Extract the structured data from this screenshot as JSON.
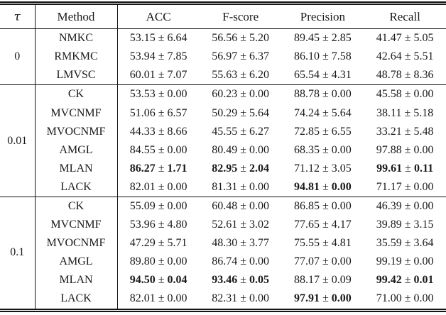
{
  "symbols": {
    "pm": "±"
  },
  "table": {
    "headers": [
      "τ",
      "Method",
      "ACC",
      "F-score",
      "Precision",
      "Recall"
    ],
    "groups": [
      {
        "tau": "0",
        "rows": [
          {
            "method": "NMKC",
            "cells": [
              {
                "m": "53.15",
                "s": "6.64",
                "b": false
              },
              {
                "m": "56.56",
                "s": "5.20",
                "b": false
              },
              {
                "m": "89.45",
                "s": "2.85",
                "b": false
              },
              {
                "m": "41.47",
                "s": "5.05",
                "b": false
              }
            ]
          },
          {
            "method": "RMKMC",
            "cells": [
              {
                "m": "53.94",
                "s": "7.85",
                "b": false
              },
              {
                "m": "56.97",
                "s": "6.37",
                "b": false
              },
              {
                "m": "86.10",
                "s": "7.58",
                "b": false
              },
              {
                "m": "42.64",
                "s": "5.51",
                "b": false
              }
            ]
          },
          {
            "method": "LMVSC",
            "cells": [
              {
                "m": "60.01",
                "s": "7.07",
                "b": false
              },
              {
                "m": "55.63",
                "s": "6.20",
                "b": false
              },
              {
                "m": "65.54",
                "s": "4.31",
                "b": false
              },
              {
                "m": "48.78",
                "s": "8.36",
                "b": false
              }
            ]
          }
        ]
      },
      {
        "tau": "0.01",
        "rows": [
          {
            "method": "CK",
            "cells": [
              {
                "m": "53.53",
                "s": "0.00",
                "b": false
              },
              {
                "m": "60.23",
                "s": "0.00",
                "b": false
              },
              {
                "m": "88.78",
                "s": "0.00",
                "b": false
              },
              {
                "m": "45.58",
                "s": "0.00",
                "b": false
              }
            ]
          },
          {
            "method": "MVCNMF",
            "cells": [
              {
                "m": "51.06",
                "s": "6.57",
                "b": false
              },
              {
                "m": "50.29",
                "s": "5.64",
                "b": false
              },
              {
                "m": "74.24",
                "s": "5.64",
                "b": false
              },
              {
                "m": "38.11",
                "s": "5.18",
                "b": false
              }
            ]
          },
          {
            "method": "MVOCNMF",
            "cells": [
              {
                "m": "44.33",
                "s": "8.66",
                "b": false
              },
              {
                "m": "45.55",
                "s": "6.27",
                "b": false
              },
              {
                "m": "72.85",
                "s": "6.55",
                "b": false
              },
              {
                "m": "33.21",
                "s": "5.48",
                "b": false
              }
            ]
          },
          {
            "method": "AMGL",
            "cells": [
              {
                "m": "84.55",
                "s": "0.00",
                "b": false
              },
              {
                "m": "80.49",
                "s": "0.00",
                "b": false
              },
              {
                "m": "68.35",
                "s": "0.00",
                "b": false
              },
              {
                "m": "97.88",
                "s": "0.00",
                "b": false
              }
            ]
          },
          {
            "method": "MLAN",
            "cells": [
              {
                "m": "86.27",
                "s": "1.71",
                "b": true
              },
              {
                "m": "82.95",
                "s": "2.04",
                "b": true
              },
              {
                "m": "71.12",
                "s": "3.05",
                "b": false
              },
              {
                "m": "99.61",
                "s": "0.11",
                "b": true
              }
            ]
          },
          {
            "method": "LACK",
            "cells": [
              {
                "m": "82.01",
                "s": "0.00",
                "b": false
              },
              {
                "m": "81.31",
                "s": "0.00",
                "b": false
              },
              {
                "m": "94.81",
                "s": "0.00",
                "b": true
              },
              {
                "m": "71.17",
                "s": "0.00",
                "b": false
              }
            ]
          }
        ]
      },
      {
        "tau": "0.1",
        "rows": [
          {
            "method": "CK",
            "cells": [
              {
                "m": "55.09",
                "s": "0.00",
                "b": false
              },
              {
                "m": "60.48",
                "s": "0.00",
                "b": false
              },
              {
                "m": "86.85",
                "s": "0.00",
                "b": false
              },
              {
                "m": "46.39",
                "s": "0.00",
                "b": false
              }
            ]
          },
          {
            "method": "MVCNMF",
            "cells": [
              {
                "m": "53.96",
                "s": "4.80",
                "b": false
              },
              {
                "m": "52.61",
                "s": "3.02",
                "b": false
              },
              {
                "m": "77.65",
                "s": "4.17",
                "b": false
              },
              {
                "m": "39.89",
                "s": "3.15",
                "b": false
              }
            ]
          },
          {
            "method": "MVOCNMF",
            "cells": [
              {
                "m": "47.29",
                "s": "5.71",
                "b": false
              },
              {
                "m": "48.30",
                "s": "3.77",
                "b": false
              },
              {
                "m": "75.55",
                "s": "4.81",
                "b": false
              },
              {
                "m": "35.59",
                "s": "3.64",
                "b": false
              }
            ]
          },
          {
            "method": "AMGL",
            "cells": [
              {
                "m": "89.80",
                "s": "0.00",
                "b": false
              },
              {
                "m": "86.74",
                "s": "0.00",
                "b": false
              },
              {
                "m": "77.07",
                "s": "0.00",
                "b": false
              },
              {
                "m": "99.19",
                "s": "0.00",
                "b": false
              }
            ]
          },
          {
            "method": "MLAN",
            "cells": [
              {
                "m": "94.50",
                "s": "0.04",
                "b": true
              },
              {
                "m": "93.46",
                "s": "0.05",
                "b": true
              },
              {
                "m": "88.17",
                "s": "0.09",
                "b": false
              },
              {
                "m": "99.42",
                "s": "0.01",
                "b": true
              }
            ]
          },
          {
            "method": "LACK",
            "cells": [
              {
                "m": "82.01",
                "s": "0.00",
                "b": false
              },
              {
                "m": "82.31",
                "s": "0.00",
                "b": false
              },
              {
                "m": "97.91",
                "s": "0.00",
                "b": true
              },
              {
                "m": "71.00",
                "s": "0.00",
                "b": false
              }
            ]
          }
        ]
      }
    ]
  }
}
